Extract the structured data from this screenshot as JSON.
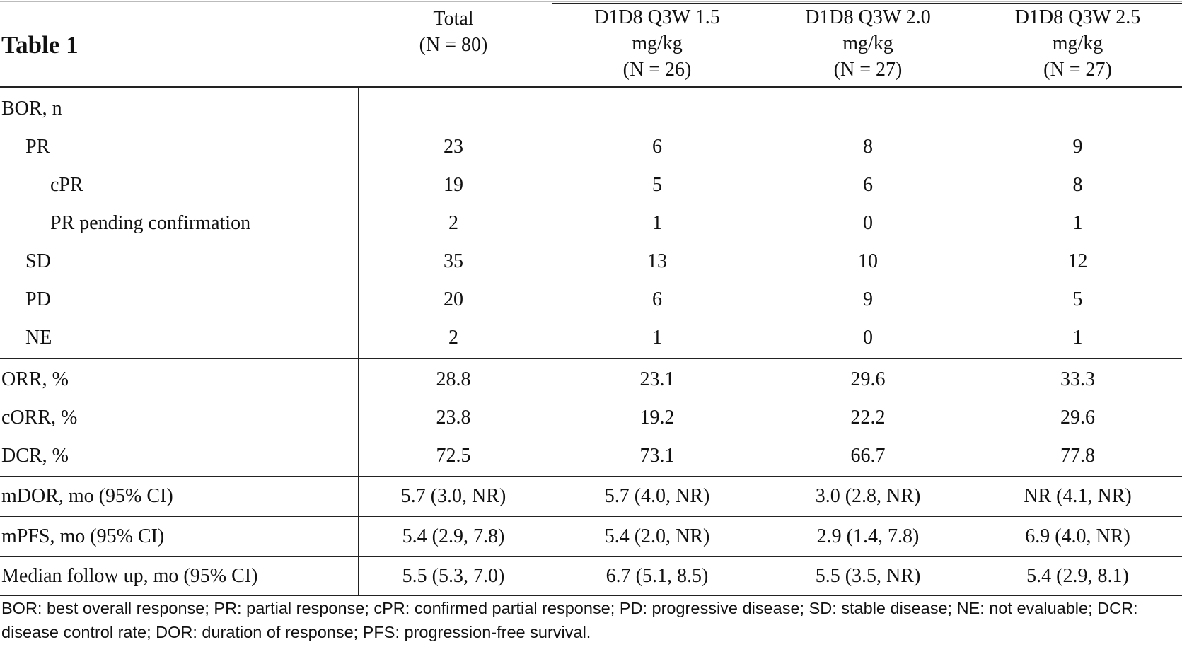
{
  "title": "Table 1",
  "columns": [
    {
      "lines": [
        "Total",
        "(N = 80)"
      ]
    },
    {
      "lines": [
        "D1D8 Q3W 1.5",
        "mg/kg",
        "(N = 26)"
      ]
    },
    {
      "lines": [
        "D1D8 Q3W 2.0",
        "mg/kg",
        "(N = 27)"
      ]
    },
    {
      "lines": [
        "D1D8 Q3W 2.5",
        "mg/kg",
        "(N = 27)"
      ]
    }
  ],
  "rows": [
    {
      "label": "BOR, n",
      "indent": 0,
      "values": [
        "",
        "",
        "",
        ""
      ]
    },
    {
      "label": "PR",
      "indent": 1,
      "values": [
        "23",
        "6",
        "8",
        "9"
      ]
    },
    {
      "label": "cPR",
      "indent": 2,
      "values": [
        "19",
        "5",
        "6",
        "8"
      ]
    },
    {
      "label": "PR pending confirmation",
      "indent": 2,
      "values": [
        "2",
        "1",
        "0",
        "1"
      ]
    },
    {
      "label": "SD",
      "indent": 1,
      "values": [
        "35",
        "13",
        "10",
        "12"
      ]
    },
    {
      "label": "PD",
      "indent": 1,
      "values": [
        "20",
        "6",
        "9",
        "5"
      ]
    },
    {
      "label": "NE",
      "indent": 1,
      "values": [
        "2",
        "1",
        "0",
        "1"
      ]
    },
    {
      "label": "ORR, %",
      "indent": 0,
      "values": [
        "28.8",
        "23.1",
        "29.6",
        "33.3"
      ]
    },
    {
      "label": "cORR, %",
      "indent": 0,
      "values": [
        "23.8",
        "19.2",
        "22.2",
        "29.6"
      ]
    },
    {
      "label": "DCR, %",
      "indent": 0,
      "values": [
        "72.5",
        "73.1",
        "66.7",
        "77.8"
      ]
    },
    {
      "label": "mDOR, mo (95% CI)",
      "indent": 0,
      "values": [
        "5.7 (3.0, NR)",
        "5.7 (4.0, NR)",
        "3.0 (2.8, NR)",
        "NR (4.1, NR)"
      ]
    },
    {
      "label": "mPFS, mo (95% CI)",
      "indent": 0,
      "values": [
        "5.4 (2.9, 7.8)",
        "5.4 (2.0, NR)",
        "2.9 (1.4, 7.8)",
        "6.9 (4.0, NR)"
      ]
    },
    {
      "label": "Median follow up, mo (95% CI)",
      "indent": 0,
      "values": [
        "5.5 (5.3, 7.0)",
        "6.7 (5.1, 8.5)",
        "5.5 (3.5, NR)",
        "5.4 (2.9, 8.1)"
      ]
    }
  ],
  "footnote": "BOR: best overall response; PR: partial response; cPR: confirmed partial response; PD: progressive disease; SD: stable disease; NE: not evaluable; DCR: disease control rate; DOR: duration of response; PFS: progression-free survival."
}
